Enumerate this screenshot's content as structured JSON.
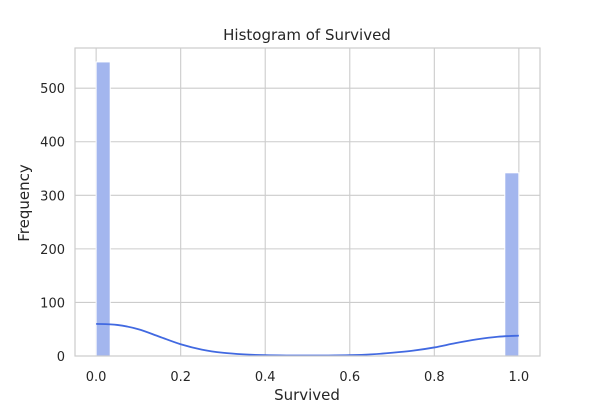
{
  "chart_data": {
    "type": "bar",
    "title": "Histogram of Survived",
    "xlabel": "Survived",
    "ylabel": "Frequency",
    "xlim": [
      -0.05,
      1.05
    ],
    "ylim": [
      0,
      575
    ],
    "xticks": [
      "0.0",
      "0.2",
      "0.4",
      "0.6",
      "0.8",
      "1.0"
    ],
    "yticks": [
      "0",
      "100",
      "200",
      "300",
      "400",
      "500"
    ],
    "grid": true,
    "bins": [
      {
        "x0": 0.0,
        "x1": 0.0333,
        "count": 549
      },
      {
        "x0": 0.9667,
        "x1": 1.0,
        "count": 342
      }
    ],
    "kde": {
      "x": [
        0.0,
        0.05,
        0.1,
        0.15,
        0.2,
        0.25,
        0.3,
        0.35,
        0.4,
        0.45,
        0.5,
        0.55,
        0.6,
        0.65,
        0.7,
        0.75,
        0.8,
        0.85,
        0.9,
        0.95,
        1.0
      ],
      "y": [
        60,
        58,
        50,
        36,
        22,
        12,
        6,
        3,
        1.5,
        1,
        1,
        1,
        1.5,
        3,
        6,
        10,
        16,
        24,
        31,
        36,
        38
      ]
    },
    "colors": {
      "bar": "#a3b6ee",
      "kde": "#4169e1",
      "grid": "#cccccc",
      "axes_edge": "#cccccc"
    }
  }
}
